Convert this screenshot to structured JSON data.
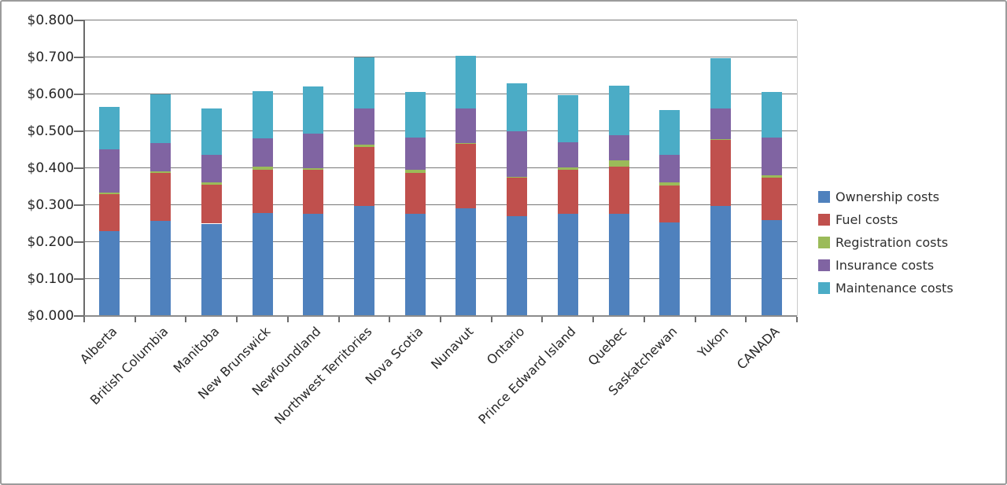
{
  "chart_data": {
    "type": "bar",
    "stacked": true,
    "title": "",
    "xlabel": "",
    "ylabel": "",
    "categories": [
      "Alberta",
      "British Columbia",
      "Manitoba",
      "New Brunswick",
      "Newfoundland",
      "Northwest Territories",
      "Nova Scotia",
      "Nunavut",
      "Ontario",
      "Prince Edward Island",
      "Quebec",
      "Saskatchewan",
      "Yukon",
      "CANADA"
    ],
    "series": [
      {
        "name": "Ownership costs",
        "color": "#4F81BD",
        "values": [
          0.229,
          0.258,
          0.25,
          0.279,
          0.276,
          0.297,
          0.276,
          0.292,
          0.27,
          0.276,
          0.276,
          0.254,
          0.297,
          0.26
        ]
      },
      {
        "name": "Fuel costs",
        "color": "#C0504D",
        "values": [
          0.1,
          0.13,
          0.106,
          0.117,
          0.119,
          0.16,
          0.112,
          0.173,
          0.104,
          0.12,
          0.128,
          0.1,
          0.18,
          0.114
        ]
      },
      {
        "name": "Registration costs",
        "color": "#9BBB59",
        "values": [
          0.006,
          0.004,
          0.006,
          0.008,
          0.006,
          0.006,
          0.008,
          0.003,
          0.003,
          0.006,
          0.017,
          0.008,
          0.002,
          0.007
        ]
      },
      {
        "name": "Insurance costs",
        "color": "#8064A2",
        "values": [
          0.117,
          0.076,
          0.075,
          0.077,
          0.093,
          0.098,
          0.086,
          0.093,
          0.123,
          0.069,
          0.069,
          0.075,
          0.082,
          0.101
        ]
      },
      {
        "name": "Maintenance costs",
        "color": "#4BACC6",
        "values": [
          0.114,
          0.132,
          0.124,
          0.128,
          0.127,
          0.139,
          0.124,
          0.144,
          0.13,
          0.126,
          0.133,
          0.12,
          0.137,
          0.125
        ]
      }
    ],
    "ylim": [
      0,
      0.8
    ],
    "y_tick_step": 0.1,
    "y_tick_labels": [
      "$0.000",
      "$0.100",
      "$0.200",
      "$0.300",
      "$0.400",
      "$0.500",
      "$0.600",
      "$0.700",
      "$0.800"
    ],
    "grid": true,
    "legend_position": "right",
    "x_label_rotation": -45
  },
  "colors": {
    "gridline": "#787878",
    "axis": "#6b6b6b",
    "canvas_border": "#9b9b9b",
    "text": "#262626"
  }
}
